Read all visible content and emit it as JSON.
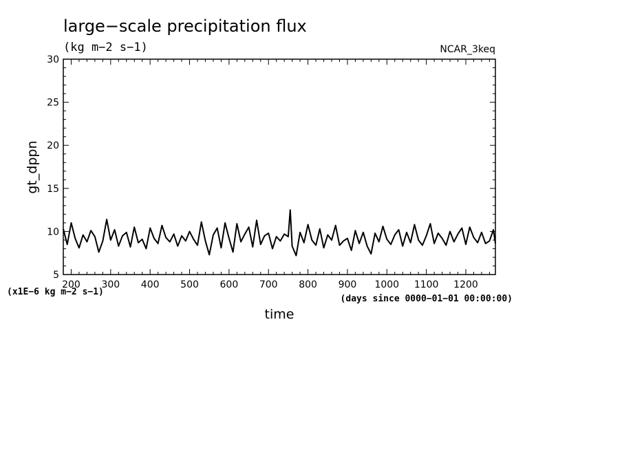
{
  "chart_data": {
    "type": "line",
    "title": "large−scale precipitation flux",
    "subtitle": "(kg m−2 s−1)",
    "source_label": "NCAR_3keq",
    "xlabel": "time",
    "x_units_label": "(days since 0000−01−01 00:00:00)",
    "ylabel": "gt_dppn",
    "y_scale_label": "(x1E−6 kg m−2 s−1)",
    "xlim": [
      180,
      1275
    ],
    "ylim": [
      5,
      30
    ],
    "xticks": [
      200,
      300,
      400,
      500,
      600,
      700,
      800,
      900,
      1000,
      1100,
      1200
    ],
    "xtick_labels": [
      "200",
      "300",
      "400",
      "500",
      "600",
      "700",
      "800",
      "900",
      "1000",
      "1100",
      "1200"
    ],
    "yticks": [
      5,
      10,
      15,
      20,
      25,
      30
    ],
    "ytick_labels": [
      "5",
      "10",
      "15",
      "20",
      "25",
      "30"
    ],
    "grid": false,
    "line_color": "#000000",
    "series": [
      {
        "x": [
          180,
          190,
          200,
          210,
          220,
          230,
          240,
          250,
          260,
          270,
          280,
          290,
          300,
          310,
          320,
          330,
          340,
          350,
          360,
          370,
          380,
          390,
          400,
          410,
          420,
          430,
          440,
          450,
          460,
          470,
          480,
          490,
          500,
          510,
          520,
          530,
          540,
          550,
          560,
          570,
          580,
          590,
          600,
          610,
          620,
          630,
          640,
          650,
          660,
          670,
          680,
          690,
          700,
          710,
          720,
          730,
          740,
          750,
          755,
          760,
          770,
          780,
          790,
          800,
          810,
          820,
          830,
          840,
          850,
          860,
          870,
          880,
          890,
          900,
          910,
          920,
          930,
          940,
          950,
          960,
          970,
          980,
          990,
          1000,
          1010,
          1020,
          1030,
          1040,
          1050,
          1060,
          1070,
          1080,
          1090,
          1100,
          1110,
          1120,
          1130,
          1140,
          1150,
          1160,
          1170,
          1180,
          1190,
          1200,
          1210,
          1220,
          1230,
          1240,
          1250,
          1260,
          1270,
          1275
        ],
        "values": [
          10.3,
          8.5,
          11.0,
          9.2,
          8.1,
          9.6,
          8.8,
          10.1,
          9.4,
          7.6,
          8.9,
          11.4,
          9.0,
          10.2,
          8.3,
          9.5,
          9.9,
          8.2,
          10.5,
          8.7,
          9.1,
          8.0,
          10.4,
          9.2,
          8.6,
          10.7,
          9.3,
          8.8,
          9.7,
          8.3,
          9.5,
          8.9,
          10.0,
          9.1,
          8.4,
          11.1,
          8.9,
          7.3,
          9.6,
          10.4,
          8.1,
          11.0,
          9.2,
          7.6,
          10.9,
          8.8,
          9.7,
          10.5,
          8.2,
          11.3,
          8.5,
          9.5,
          9.8,
          8.0,
          9.4,
          8.9,
          9.7,
          9.4,
          12.5,
          8.3,
          7.2,
          9.9,
          8.7,
          10.8,
          9.0,
          8.4,
          10.3,
          8.1,
          9.6,
          9.0,
          10.7,
          8.4,
          8.9,
          9.2,
          7.8,
          10.1,
          8.6,
          9.9,
          8.3,
          7.4,
          9.8,
          8.8,
          10.6,
          9.1,
          8.5,
          9.6,
          10.2,
          8.3,
          9.9,
          8.7,
          10.8,
          9.0,
          8.4,
          9.5,
          10.9,
          8.6,
          9.8,
          9.2,
          8.4,
          10.0,
          8.8,
          9.7,
          10.4,
          8.5,
          10.5,
          9.3,
          8.7,
          9.9,
          8.6,
          8.9,
          10.2,
          8.6
        ]
      }
    ]
  }
}
